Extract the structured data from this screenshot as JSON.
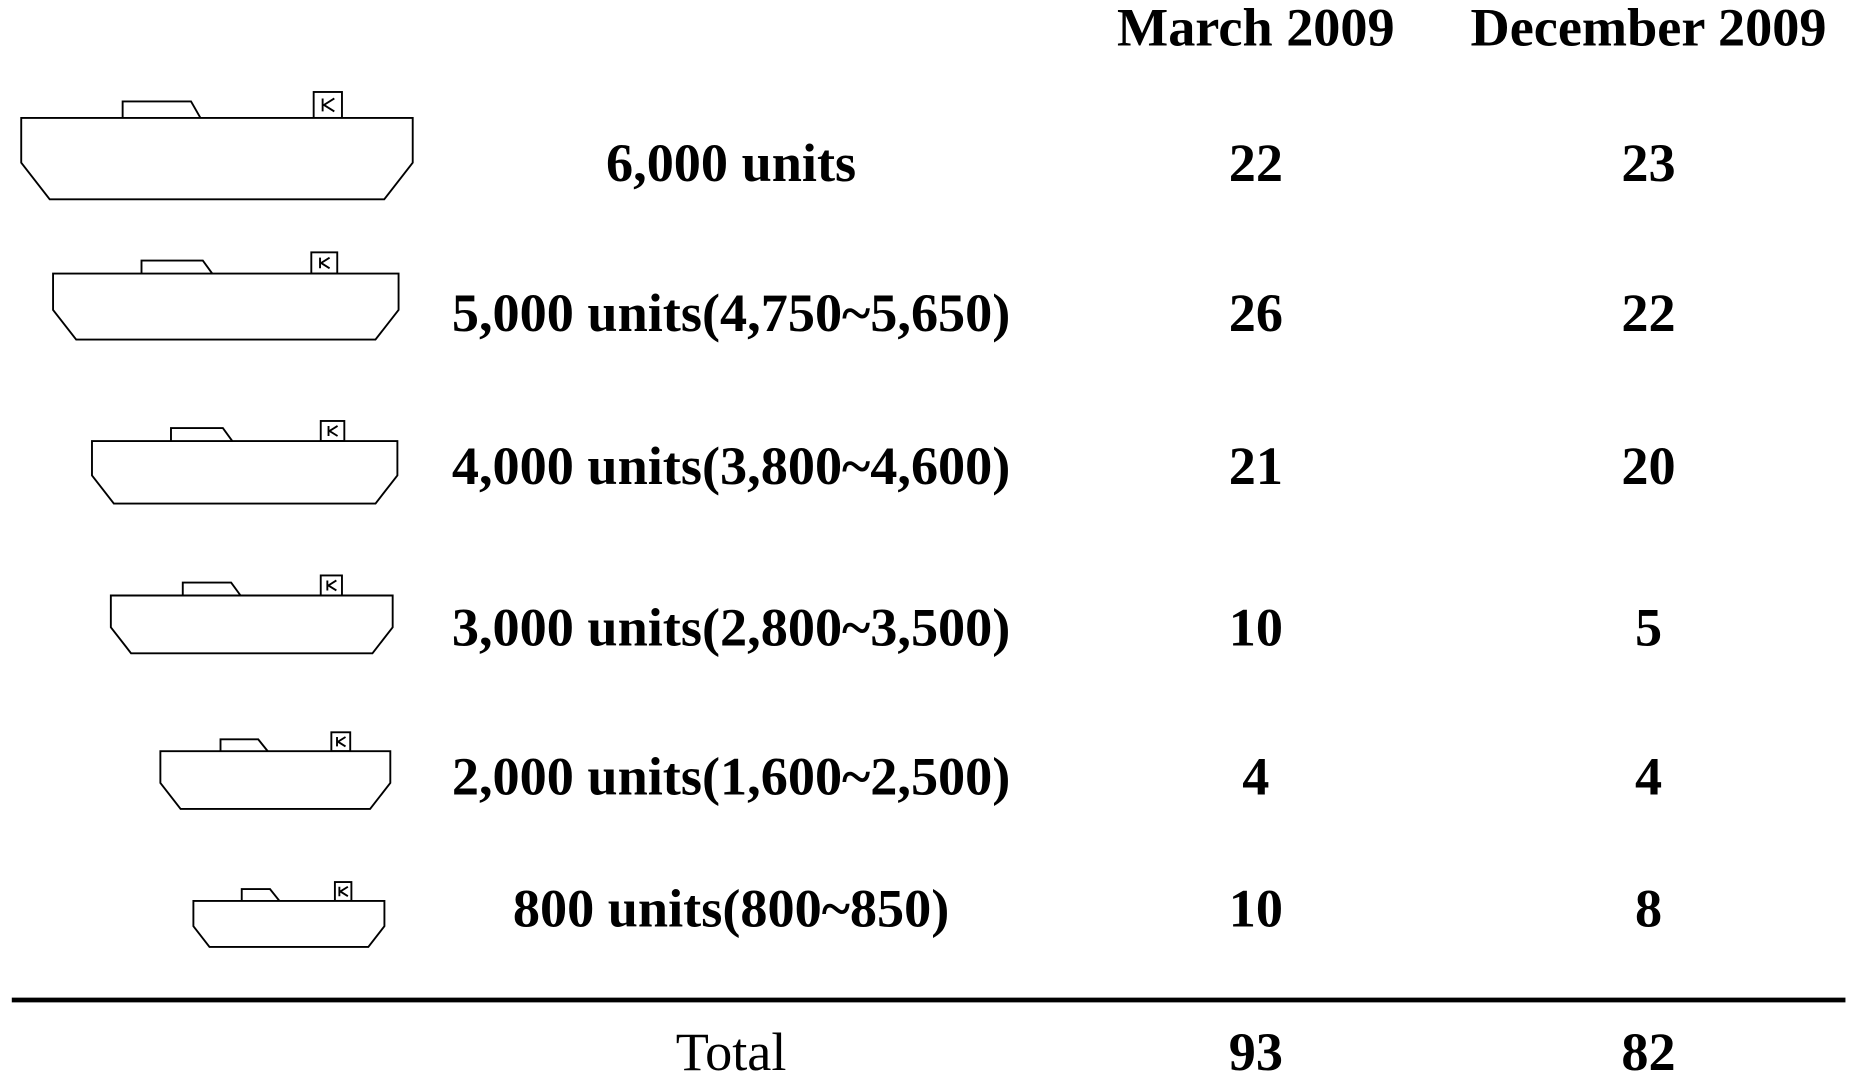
{
  "table": {
    "columns": [
      "March 2009",
      "December 2009"
    ],
    "rows": [
      {
        "label": "6,000 units",
        "values": [
          22,
          23
        ]
      },
      {
        "label": "5,000 units(4,750~5,650)",
        "values": [
          26,
          22
        ]
      },
      {
        "label": "4,000 units(3,800~4,600)",
        "values": [
          21,
          20
        ]
      },
      {
        "label": "3,000 units(2,800~3,500)",
        "values": [
          10,
          5
        ]
      },
      {
        "label": "2,000 units(1,600~2,500)",
        "values": [
          4,
          4
        ]
      },
      {
        "label": "800 units(800~850)",
        "values": [
          10,
          8
        ]
      }
    ],
    "total": {
      "label": "Total",
      "values": [
        93,
        82
      ]
    }
  }
}
